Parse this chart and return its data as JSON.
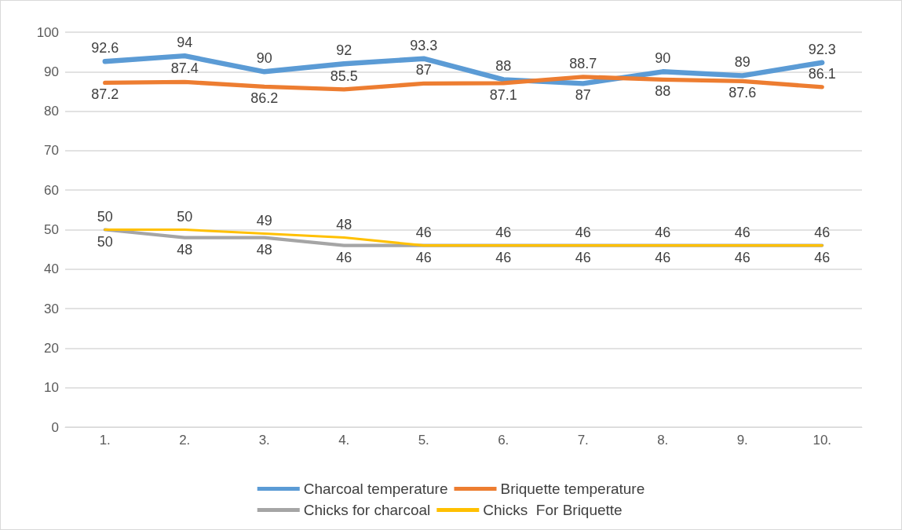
{
  "chart_data": {
    "type": "line",
    "categories": [
      "1.",
      "2.",
      "3.",
      "4.",
      "5.",
      "6.",
      "7.",
      "8.",
      "9.",
      "10."
    ],
    "series": [
      {
        "name": "Charcoal temperature",
        "color": "#5b9bd5",
        "values": [
          92.6,
          94,
          90,
          92,
          93.3,
          88,
          87,
          90,
          89,
          92.3
        ]
      },
      {
        "name": "Briquette temperature",
        "color": "#ed7d31",
        "values": [
          87.2,
          87.4,
          86.2,
          85.5,
          87,
          87.1,
          88.7,
          88,
          87.6,
          86.1
        ]
      },
      {
        "name": "Chicks for charcoal",
        "color": "#a5a5a5",
        "values": [
          50,
          48,
          48,
          46,
          46,
          46,
          46,
          46,
          46,
          46
        ]
      },
      {
        "name": "Chicks  For Briquette",
        "color": "#ffc000",
        "values": [
          50,
          50,
          49,
          48,
          46,
          46,
          46,
          46,
          46,
          46
        ]
      }
    ],
    "ylim": [
      0,
      100
    ],
    "yticks": [
      0,
      10,
      20,
      30,
      40,
      50,
      60,
      70,
      80,
      90,
      100
    ],
    "grid": "y",
    "legend": "bottom",
    "marker": "none",
    "line_style": "solid",
    "data_labels": true
  }
}
